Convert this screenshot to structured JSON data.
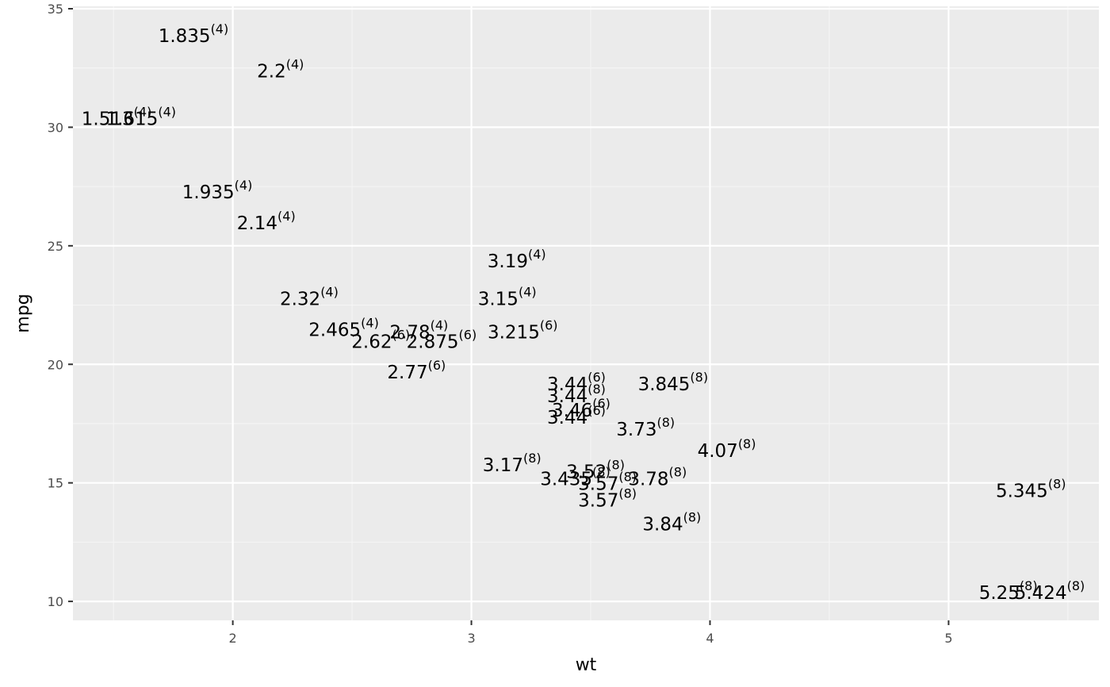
{
  "chart_data": {
    "type": "scatter",
    "mark": "text",
    "xlabel": "wt",
    "ylabel": "mpg",
    "xlim": [
      1.33,
      5.63
    ],
    "ylim": [
      9.2,
      35.1
    ],
    "x_ticks": [
      2,
      3,
      4,
      5
    ],
    "y_ticks": [
      10,
      15,
      20,
      25,
      30,
      35
    ],
    "grid": true,
    "points": [
      {
        "wt": 2.62,
        "mpg": 21.0,
        "label": "2.62",
        "cyl": "(6)"
      },
      {
        "wt": 2.875,
        "mpg": 21.0,
        "label": "2.875",
        "cyl": "(6)"
      },
      {
        "wt": 2.32,
        "mpg": 22.8,
        "label": "2.32",
        "cyl": "(4)"
      },
      {
        "wt": 3.215,
        "mpg": 21.4,
        "label": "3.215",
        "cyl": "(6)"
      },
      {
        "wt": 3.44,
        "mpg": 18.7,
        "label": "3.44",
        "cyl": "(8)"
      },
      {
        "wt": 3.46,
        "mpg": 18.1,
        "label": "3.46",
        "cyl": "(6)"
      },
      {
        "wt": 3.57,
        "mpg": 14.3,
        "label": "3.57",
        "cyl": "(8)"
      },
      {
        "wt": 3.19,
        "mpg": 24.4,
        "label": "3.19",
        "cyl": "(4)"
      },
      {
        "wt": 3.15,
        "mpg": 22.8,
        "label": "3.15",
        "cyl": "(4)"
      },
      {
        "wt": 3.44,
        "mpg": 19.2,
        "label": "3.44",
        "cyl": "(6)"
      },
      {
        "wt": 3.44,
        "mpg": 17.8,
        "label": "3.44",
        "cyl": "(6)"
      },
      {
        "wt": 4.07,
        "mpg": 16.4,
        "label": "4.07",
        "cyl": "(8)"
      },
      {
        "wt": 3.73,
        "mpg": 17.3,
        "label": "3.73",
        "cyl": "(8)"
      },
      {
        "wt": 3.78,
        "mpg": 15.2,
        "label": "3.78",
        "cyl": "(8)"
      },
      {
        "wt": 5.25,
        "mpg": 10.4,
        "label": "5.25",
        "cyl": "(8)"
      },
      {
        "wt": 5.424,
        "mpg": 10.4,
        "label": "5.424",
        "cyl": "(8)"
      },
      {
        "wt": 5.345,
        "mpg": 14.7,
        "label": "5.345",
        "cyl": "(8)"
      },
      {
        "wt": 2.2,
        "mpg": 32.4,
        "label": "2.2",
        "cyl": "(4)"
      },
      {
        "wt": 1.615,
        "mpg": 30.4,
        "label": "1.615",
        "cyl": "(4)"
      },
      {
        "wt": 1.835,
        "mpg": 33.9,
        "label": "1.835",
        "cyl": "(4)"
      },
      {
        "wt": 2.465,
        "mpg": 21.5,
        "label": "2.465",
        "cyl": "(4)"
      },
      {
        "wt": 3.52,
        "mpg": 15.5,
        "label": "3.52",
        "cyl": "(8)"
      },
      {
        "wt": 3.435,
        "mpg": 15.2,
        "label": "3.435",
        "cyl": "(8)"
      },
      {
        "wt": 3.84,
        "mpg": 13.3,
        "label": "3.84",
        "cyl": "(8)"
      },
      {
        "wt": 3.845,
        "mpg": 19.2,
        "label": "3.845",
        "cyl": "(8)"
      },
      {
        "wt": 1.935,
        "mpg": 27.3,
        "label": "1.935",
        "cyl": "(4)"
      },
      {
        "wt": 2.14,
        "mpg": 26.0,
        "label": "2.14",
        "cyl": "(4)"
      },
      {
        "wt": 1.513,
        "mpg": 30.4,
        "label": "1.513",
        "cyl": "(4)"
      },
      {
        "wt": 3.17,
        "mpg": 15.8,
        "label": "3.17",
        "cyl": "(8)"
      },
      {
        "wt": 2.77,
        "mpg": 19.7,
        "label": "2.77",
        "cyl": "(6)"
      },
      {
        "wt": 3.57,
        "mpg": 15.0,
        "label": "3.57",
        "cyl": "(8)"
      },
      {
        "wt": 2.78,
        "mpg": 21.4,
        "label": "2.78",
        "cyl": "(4)"
      }
    ],
    "colors": {
      "panel_background": "#ebebeb",
      "grid_major": "#ffffff",
      "grid_minor": "#f5f5f5",
      "tick_text": "#4d4d4d",
      "tick_mark": "#333333",
      "label_text": "#000000"
    }
  }
}
